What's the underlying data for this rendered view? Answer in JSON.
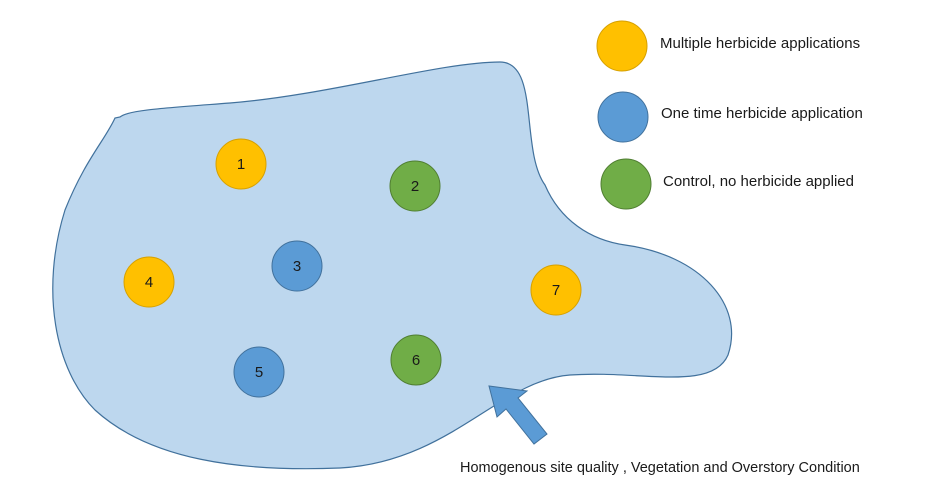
{
  "plots": [
    {
      "id": "1",
      "treatment": "multiple"
    },
    {
      "id": "2",
      "treatment": "control"
    },
    {
      "id": "3",
      "treatment": "one_time"
    },
    {
      "id": "4",
      "treatment": "multiple"
    },
    {
      "id": "5",
      "treatment": "one_time"
    },
    {
      "id": "6",
      "treatment": "control"
    },
    {
      "id": "7",
      "treatment": "multiple"
    }
  ],
  "legend": [
    {
      "key": "multiple",
      "label": "Multiple herbicide applications",
      "color": "#ffc000"
    },
    {
      "key": "one_time",
      "label": "One time herbicide application",
      "color": "#5b9bd5"
    },
    {
      "key": "control",
      "label": "Control, no herbicide applied",
      "color": "#70ad47"
    }
  ],
  "site": {
    "caption": "Homogenous site quality , Vegetation and Overstory Condition",
    "fill_color": "#bdd7ee",
    "stroke_color": "#41719c"
  },
  "arrow": {
    "color": "#5b9bd5",
    "stroke_color": "#41719c"
  }
}
